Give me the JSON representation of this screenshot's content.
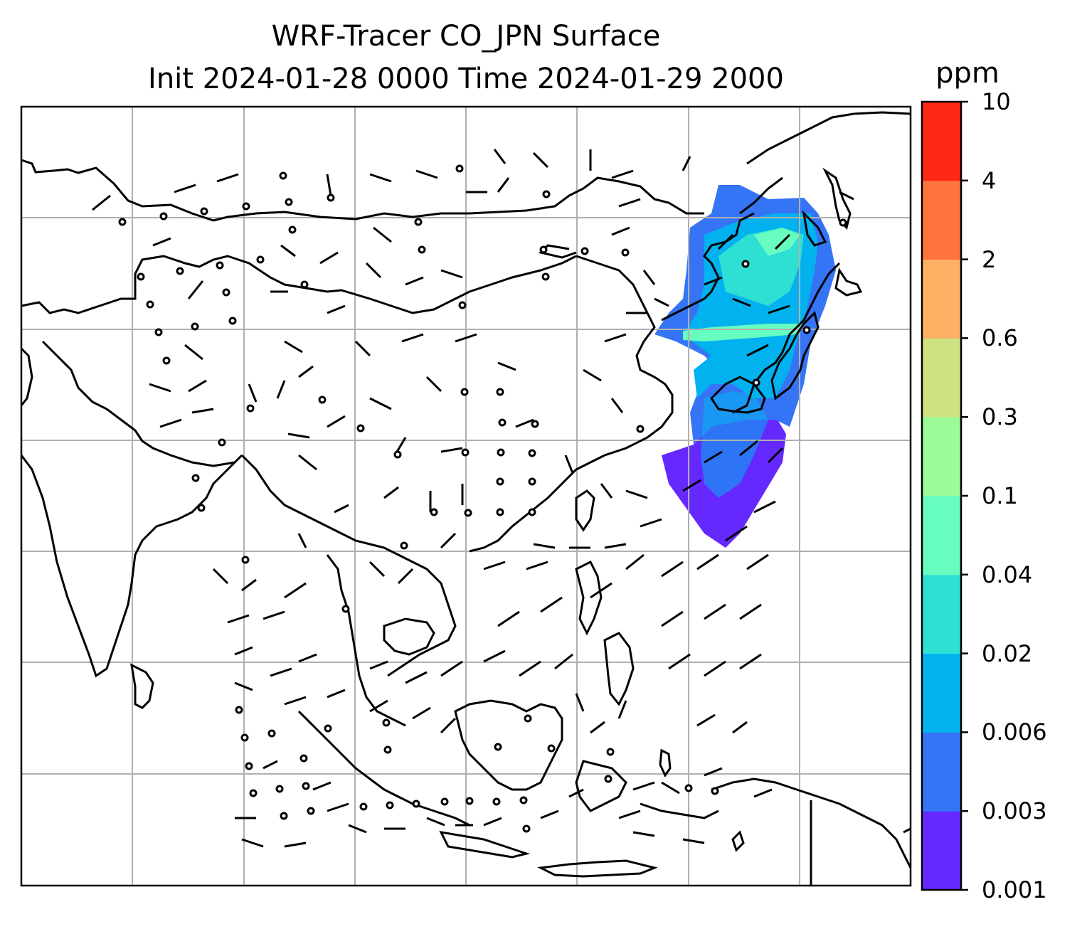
{
  "title_line1": "WRF-Tracer CO_JPN Surface",
  "title_line2": "Init 2024-01-28 0000 Time 2024-01-29 2000",
  "colorbar": {
    "units": "ppm",
    "ticks": [
      "0.001",
      "0.003",
      "0.006",
      "0.02",
      "0.04",
      "0.1",
      "0.3",
      "0.6",
      "2",
      "4",
      "10"
    ],
    "colors": [
      "#6528ff",
      "#3575f5",
      "#02b2ee",
      "#2ee0d3",
      "#67fcc0",
      "#9bfb98",
      "#cde283",
      "#feb065",
      "#ff733e",
      "#ff2718"
    ]
  },
  "map": {
    "tracer": "CO_JPN",
    "level": "Surface",
    "gridlines": "on",
    "plume_colors": {
      "low": "#6528ff",
      "mid": "#3575f5",
      "high": "#02b2ee",
      "peak": "#67fcc0"
    }
  }
}
